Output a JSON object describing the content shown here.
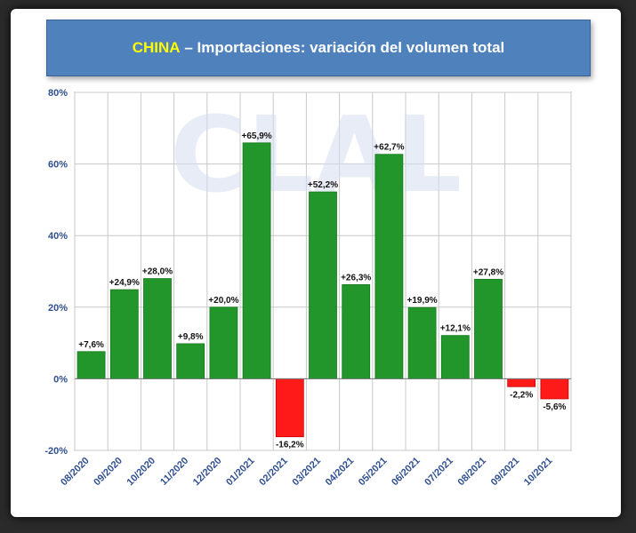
{
  "title": {
    "country": "CHINA",
    "separator": " – ",
    "text": "Importaciones: variación del volumen total"
  },
  "watermark": "CLAL",
  "colors": {
    "positive": "#22962a",
    "negative": "#ff1a1a",
    "title_bg": "#4f81bd",
    "axis_text": "#2f4f8f"
  },
  "chart_data": {
    "type": "bar",
    "categories": [
      "08/2020",
      "09/2020",
      "10/2020",
      "11/2020",
      "12/2020",
      "01/2021",
      "02/2021",
      "03/2021",
      "04/2021",
      "05/2021",
      "06/2021",
      "07/2021",
      "08/2021",
      "09/2021",
      "10/2021"
    ],
    "values": [
      7.6,
      24.9,
      28.0,
      9.8,
      20.0,
      65.9,
      -16.2,
      52.2,
      26.3,
      62.7,
      19.9,
      12.1,
      27.8,
      -2.2,
      -5.6
    ],
    "data_labels": [
      "+7,6%",
      "+24,9%",
      "+28,0%",
      "+9,8%",
      "+20,0%",
      "+65,9%",
      "-16,2%",
      "+52,2%",
      "+26,3%",
      "+62,7%",
      "+19,9%",
      "+12,1%",
      "+27,8%",
      "-2,2%",
      "-5,6%"
    ],
    "y_ticks": [
      80,
      60,
      40,
      20,
      0,
      -20
    ],
    "y_tick_labels": [
      "80%",
      "60%",
      "40%",
      "20%",
      "0%",
      "-20%"
    ],
    "ylim": [
      -20,
      80
    ],
    "grid": true,
    "xlabel": "",
    "ylabel": ""
  }
}
